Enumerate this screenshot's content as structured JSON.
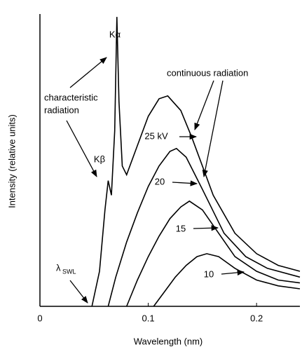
{
  "chart_data": {
    "type": "line",
    "xlabel": "Wavelength (nm)",
    "ylabel": "Intensity (relative units)",
    "xlim": [
      0,
      0.24
    ],
    "xticks": [
      0,
      0.1,
      0.2
    ],
    "ylim": [
      0,
      100
    ],
    "annotations": {
      "k_alpha": "Kα",
      "k_beta": "Kβ",
      "characteristic": [
        "characteristic",
        "radiation"
      ],
      "continuous": "continuous radiation",
      "swl_symbol": "λ",
      "swl_subscript": "SWL"
    },
    "series": [
      {
        "name": "25 kV",
        "color": "#000000",
        "x": [
          0.048,
          0.055,
          0.06,
          0.063,
          0.066,
          0.069,
          0.071,
          0.073,
          0.076,
          0.08,
          0.09,
          0.1,
          0.11,
          0.118,
          0.13,
          0.14,
          0.16,
          0.18,
          0.2,
          0.22,
          0.24
        ],
        "values": [
          0,
          12,
          33,
          43,
          38,
          60,
          99,
          70,
          48,
          45,
          55,
          65,
          71,
          72,
          67,
          58,
          38,
          25,
          18,
          14,
          12
        ]
      },
      {
        "name": "20",
        "color": "#000000",
        "x": [
          0.063,
          0.07,
          0.08,
          0.09,
          0.1,
          0.11,
          0.12,
          0.126,
          0.135,
          0.15,
          0.17,
          0.19,
          0.21,
          0.24
        ],
        "values": [
          0,
          10,
          22,
          32,
          41,
          48,
          53,
          54,
          51,
          40,
          25,
          17,
          13,
          10
        ]
      },
      {
        "name": "15",
        "color": "#000000",
        "x": [
          0.08,
          0.09,
          0.1,
          0.11,
          0.12,
          0.13,
          0.138,
          0.15,
          0.165,
          0.18,
          0.2,
          0.22,
          0.24
        ],
        "values": [
          0,
          9,
          17,
          24,
          30,
          34,
          36,
          33,
          25,
          17,
          12,
          9,
          8
        ]
      },
      {
        "name": "10",
        "color": "#000000",
        "x": [
          0.105,
          0.115,
          0.125,
          0.135,
          0.145,
          0.154,
          0.165,
          0.18,
          0.2,
          0.22,
          0.24
        ],
        "values": [
          0,
          5,
          10,
          14,
          17,
          18,
          17,
          13,
          9,
          7,
          6
        ]
      }
    ]
  }
}
